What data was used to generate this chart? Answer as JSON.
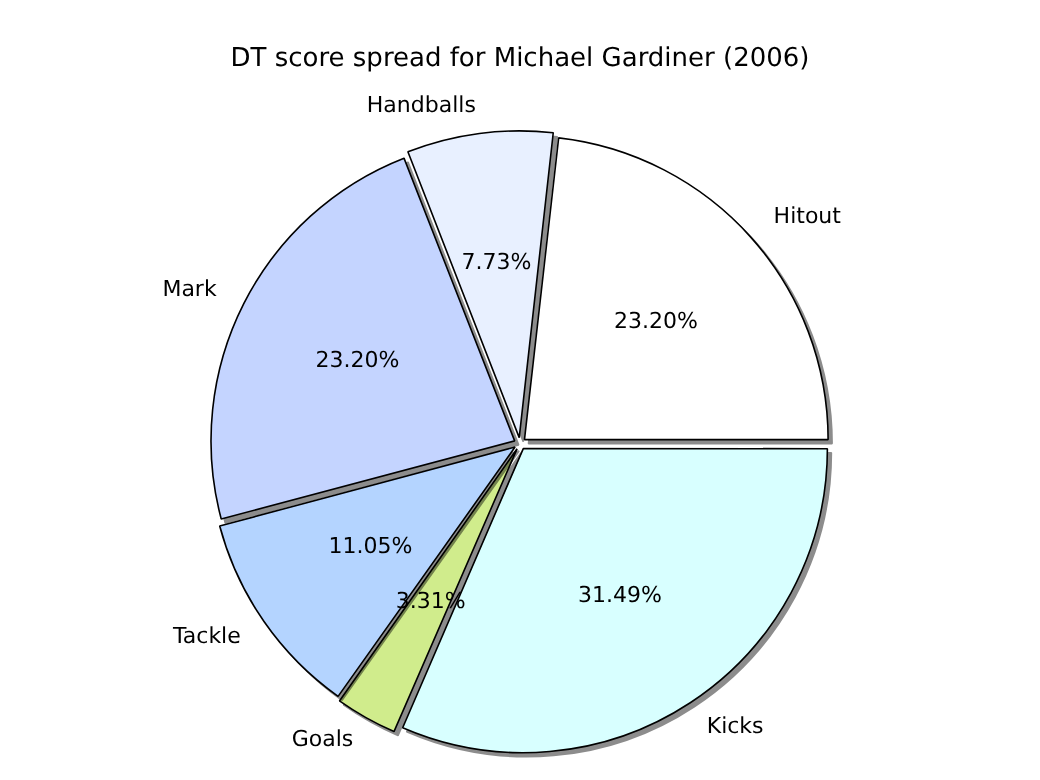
{
  "chart_data": {
    "type": "pie",
    "title": "DT score spread for Michael Gardiner (2006)",
    "categories": [
      "Hitout",
      "Handballs",
      "Mark",
      "Tackle",
      "Goals",
      "Kicks"
    ],
    "values": [
      23.2,
      7.73,
      23.2,
      11.05,
      3.31,
      31.49
    ],
    "value_labels": [
      "23.20%",
      "7.73%",
      "23.20%",
      "11.05%",
      "3.31%",
      "31.49%"
    ],
    "colors": [
      "#ffffff",
      "#e8f0ff",
      "#c4d4ff",
      "#b4d4ff",
      "#d0ec8c",
      "#d8ffff"
    ]
  }
}
